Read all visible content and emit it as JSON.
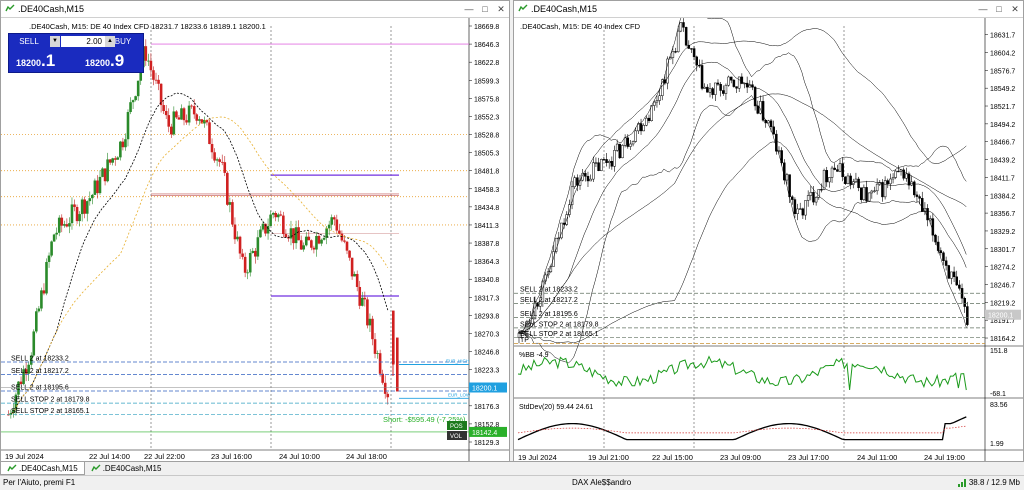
{
  "left": {
    "title": ".DE40Cash,M15",
    "ohlc": ".DE40Cash, M15:  DE 40 Index CFD  18231.7 18233.6 18189.1 18200.1",
    "trade": {
      "sell": "SELL",
      "buy": "BUY",
      "lot": "2.00",
      "bid_a": "18200",
      "bid_b": ".1",
      "ask_a": "18200",
      "ask_b": ".9"
    },
    "price_ticks": [
      "18669.8",
      "18646.3",
      "18622.8",
      "18599.3",
      "18575.8",
      "18552.3",
      "18528.8",
      "18505.3",
      "18481.8",
      "18458.3",
      "18434.8",
      "18411.3",
      "18387.8",
      "18364.3",
      "18340.8",
      "18317.3",
      "18293.8",
      "18270.3",
      "18246.8",
      "18223.3",
      "18199.8",
      "18176.3",
      "18152.8",
      "18129.3"
    ],
    "current_price": "18200.1",
    "stop_price": "18142.4",
    "time_labels": [
      "19 Jul 2024",
      "22 Jul 14:00",
      "22 Jul 22:00",
      "23 Jul 16:00",
      "24 Jul 10:00",
      "24 Jul 18:00"
    ],
    "orders": [
      "SELL 2 at 18233.2",
      "SELL 2 at 18217.2",
      "SELL 2 at 18195.6",
      "SELL STOP 2 at 18179.8",
      "SELL STOP 2 at 18165.1"
    ],
    "short_label": "Short: -$595.49 (-7.25%)",
    "level_small": [
      "EUR_HIGH",
      "EUR_LOW"
    ],
    "badge_pos": "POS",
    "badge_vol": "VOL"
  },
  "right": {
    "title": ".DE40Cash,M15",
    "ohlc": ".DE40Cash, M15:  DE 40 Index CFD",
    "price_ticks": [
      "18631.7",
      "18604.2",
      "18576.7",
      "18549.2",
      "18521.7",
      "18494.2",
      "18466.7",
      "18439.2",
      "18411.7",
      "18384.2",
      "18356.7",
      "18329.2",
      "18301.7",
      "18274.2",
      "18246.7",
      "18219.2",
      "18191.7",
      "18164.2"
    ],
    "current_price": "18200.1",
    "orders": [
      "SELL 2 at 18233.2",
      "SELL 2 at 18217.2",
      "SELL 2 at 18195.6",
      "SELL STOP 2 at 18179.8",
      "SELL STOP 2 at 18165.1",
      "TP"
    ],
    "pbb": {
      "label": "%BB -4.9",
      "max": "151.8",
      "min": "-68.1"
    },
    "stddev": {
      "label": "StdDev(20) 59.44 24.61",
      "max": "83.56",
      "min": "1.99"
    },
    "time_labels": [
      "19 Jul 2024",
      "19 Jul 21:00",
      "22 Jul 15:00",
      "23 Jul 09:00",
      "23 Jul 17:00",
      "24 Jul 11:00",
      "24 Jul 19:00"
    ]
  },
  "tabs": [
    ".DE40Cash,M15",
    ".DE40Cash,M15"
  ],
  "status": {
    "help": "Per l'Aiuto, premi F1",
    "profile": "DAX Ale$$andro",
    "net": "38.8 / 12.9 Mb"
  }
}
